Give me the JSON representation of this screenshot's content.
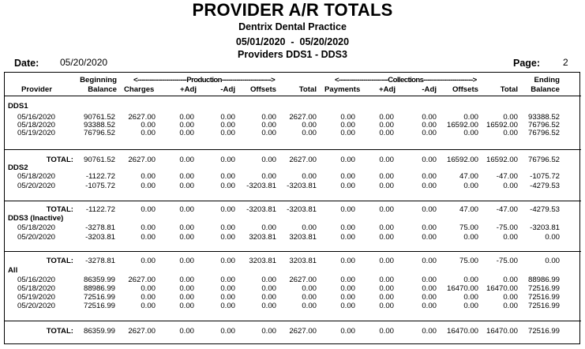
{
  "header": {
    "title": "PROVIDER A/R TOTALS",
    "practice": "Dentrix Dental Practice",
    "date_range": "05/01/2020  -  05/20/2020",
    "providers_range": "Providers DDS1 - DDS3",
    "date_label": "Date:",
    "date_value": "05/20/2020",
    "page_label": "Page:",
    "page_value": "2"
  },
  "columns": {
    "group_production": "<------------------------Production------------------------>",
    "group_collections": "<------------------------Collections------------------------>",
    "provider": "Provider",
    "beginning_top": "Beginning",
    "beginning_bottom": "Balance",
    "charges": "Charges",
    "prod_plus_adj": "+Adj",
    "prod_minus_adj": "-Adj",
    "prod_offsets": "Offsets",
    "prod_total": "Total",
    "payments": "Payments",
    "coll_plus_adj": "+Adj",
    "coll_minus_adj": "-Adj",
    "coll_offsets": "Offsets",
    "coll_total": "Total",
    "ending_top": "Ending",
    "ending_bottom": "Balance"
  },
  "sections": [
    {
      "name": "DDS1",
      "rows": [
        [
          "05/16/2020",
          "90761.52",
          "2627.00",
          "0.00",
          "0.00",
          "0.00",
          "2627.00",
          "0.00",
          "0.00",
          "0.00",
          "0.00",
          "0.00",
          "93388.52"
        ],
        [
          "05/18/2020",
          "93388.52",
          "0.00",
          "0.00",
          "0.00",
          "0.00",
          "0.00",
          "0.00",
          "0.00",
          "0.00",
          "16592.00",
          "16592.00",
          "76796.52"
        ],
        [
          "05/19/2020",
          "76796.52",
          "0.00",
          "0.00",
          "0.00",
          "0.00",
          "0.00",
          "0.00",
          "0.00",
          "0.00",
          "0.00",
          "0.00",
          "76796.52"
        ]
      ],
      "total": [
        "TOTAL:",
        "90761.52",
        "2627.00",
        "0.00",
        "0.00",
        "0.00",
        "2627.00",
        "0.00",
        "0.00",
        "0.00",
        "16592.00",
        "16592.00",
        "76796.52"
      ]
    },
    {
      "name": "DDS2",
      "rows": [
        [
          "05/18/2020",
          "-1122.72",
          "0.00",
          "0.00",
          "0.00",
          "0.00",
          "0.00",
          "0.00",
          "0.00",
          "0.00",
          "47.00",
          "-47.00",
          "-1075.72"
        ],
        [
          "05/20/2020",
          "-1075.72",
          "0.00",
          "0.00",
          "0.00",
          "-3203.81",
          "-3203.81",
          "0.00",
          "0.00",
          "0.00",
          "0.00",
          "0.00",
          "-4279.53"
        ]
      ],
      "total": [
        "TOTAL:",
        "-1122.72",
        "0.00",
        "0.00",
        "0.00",
        "-3203.81",
        "-3203.81",
        "0.00",
        "0.00",
        "0.00",
        "47.00",
        "-47.00",
        "-4279.53"
      ]
    },
    {
      "name": "DDS3 (Inactive)",
      "rows": [
        [
          "05/18/2020",
          "-3278.81",
          "0.00",
          "0.00",
          "0.00",
          "0.00",
          "0.00",
          "0.00",
          "0.00",
          "0.00",
          "75.00",
          "-75.00",
          "-3203.81"
        ],
        [
          "05/20/2020",
          "-3203.81",
          "0.00",
          "0.00",
          "0.00",
          "3203.81",
          "3203.81",
          "0.00",
          "0.00",
          "0.00",
          "0.00",
          "0.00",
          "0.00"
        ]
      ],
      "total": [
        "TOTAL:",
        "-3278.81",
        "0.00",
        "0.00",
        "0.00",
        "3203.81",
        "3203.81",
        "0.00",
        "0.00",
        "0.00",
        "75.00",
        "-75.00",
        "0.00"
      ]
    },
    {
      "name": "All",
      "rows": [
        [
          "05/16/2020",
          "86359.99",
          "2627.00",
          "0.00",
          "0.00",
          "0.00",
          "2627.00",
          "0.00",
          "0.00",
          "0.00",
          "0.00",
          "0.00",
          "88986.99"
        ],
        [
          "05/18/2020",
          "88986.99",
          "0.00",
          "0.00",
          "0.00",
          "0.00",
          "0.00",
          "0.00",
          "0.00",
          "0.00",
          "16470.00",
          "16470.00",
          "72516.99"
        ],
        [
          "05/19/2020",
          "72516.99",
          "0.00",
          "0.00",
          "0.00",
          "0.00",
          "0.00",
          "0.00",
          "0.00",
          "0.00",
          "0.00",
          "0.00",
          "72516.99"
        ],
        [
          "05/20/2020",
          "72516.99",
          "0.00",
          "0.00",
          "0.00",
          "0.00",
          "0.00",
          "0.00",
          "0.00",
          "0.00",
          "0.00",
          "0.00",
          "72516.99"
        ]
      ],
      "total": [
        "TOTAL:",
        "86359.99",
        "2627.00",
        "0.00",
        "0.00",
        "0.00",
        "2627.00",
        "0.00",
        "0.00",
        "0.00",
        "16470.00",
        "16470.00",
        "72516.99"
      ]
    }
  ]
}
